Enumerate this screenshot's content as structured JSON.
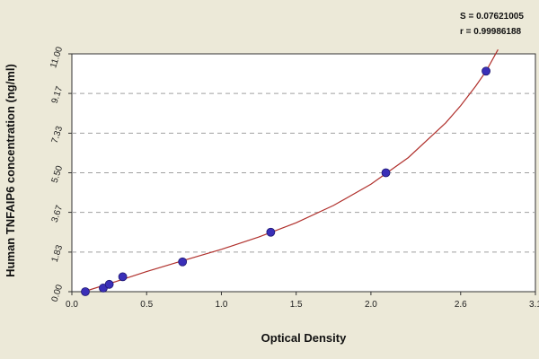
{
  "chart_data": {
    "type": "scatter",
    "title": "",
    "xlabel": "Optical Density",
    "ylabel": "Human TNFAIP6 concentration (ng/ml)",
    "xlim": [
      0.0,
      3.1
    ],
    "ylim": [
      0.0,
      11.0
    ],
    "x_ticks": [
      {
        "v": 0.0,
        "label": "0.0"
      },
      {
        "v": 0.5,
        "label": "0.5"
      },
      {
        "v": 1.0,
        "label": "1.0"
      },
      {
        "v": 1.5,
        "label": "1.5"
      },
      {
        "v": 2.0,
        "label": "2.0"
      },
      {
        "v": 2.6,
        "label": "2.6"
      },
      {
        "v": 3.1,
        "label": "3.1"
      }
    ],
    "y_ticks": [
      {
        "v": 0.0,
        "label": "0.00"
      },
      {
        "v": 1.83,
        "label": "1.83"
      },
      {
        "v": 3.67,
        "label": "3.67"
      },
      {
        "v": 5.5,
        "label": "5.50"
      },
      {
        "v": 7.33,
        "label": "7.33"
      },
      {
        "v": 9.17,
        "label": "9.17"
      },
      {
        "v": 11.0,
        "label": "11.00"
      }
    ],
    "grid": {
      "horizontal": true,
      "vertical": false,
      "style": "dashed"
    },
    "points": [
      {
        "x": 0.09,
        "y": 0.0
      },
      {
        "x": 0.21,
        "y": 0.17
      },
      {
        "x": 0.25,
        "y": 0.34
      },
      {
        "x": 0.34,
        "y": 0.69
      },
      {
        "x": 0.74,
        "y": 1.38
      },
      {
        "x": 1.33,
        "y": 2.75
      },
      {
        "x": 2.1,
        "y": 5.5
      },
      {
        "x": 2.77,
        "y": 10.2
      }
    ],
    "fit_curve": {
      "x": [
        0.08,
        0.25,
        0.5,
        0.75,
        1.0,
        1.25,
        1.5,
        1.75,
        2.0,
        2.25,
        2.5,
        2.6,
        2.7,
        2.77,
        2.85
      ],
      "y": [
        0.0,
        0.37,
        0.93,
        1.45,
        1.96,
        2.53,
        3.19,
        3.99,
        4.97,
        6.2,
        7.81,
        8.6,
        9.5,
        10.2,
        11.2
      ]
    },
    "stats": {
      "s_label": "S = 0.07621005",
      "r_label": "r = 0.99986188"
    },
    "colors": {
      "point": "#3A2FB8",
      "curve": "#B0302C",
      "grid": "#A0A0A0",
      "plot_bg": "#FFFFFF",
      "background": "#ECE9D8"
    }
  }
}
